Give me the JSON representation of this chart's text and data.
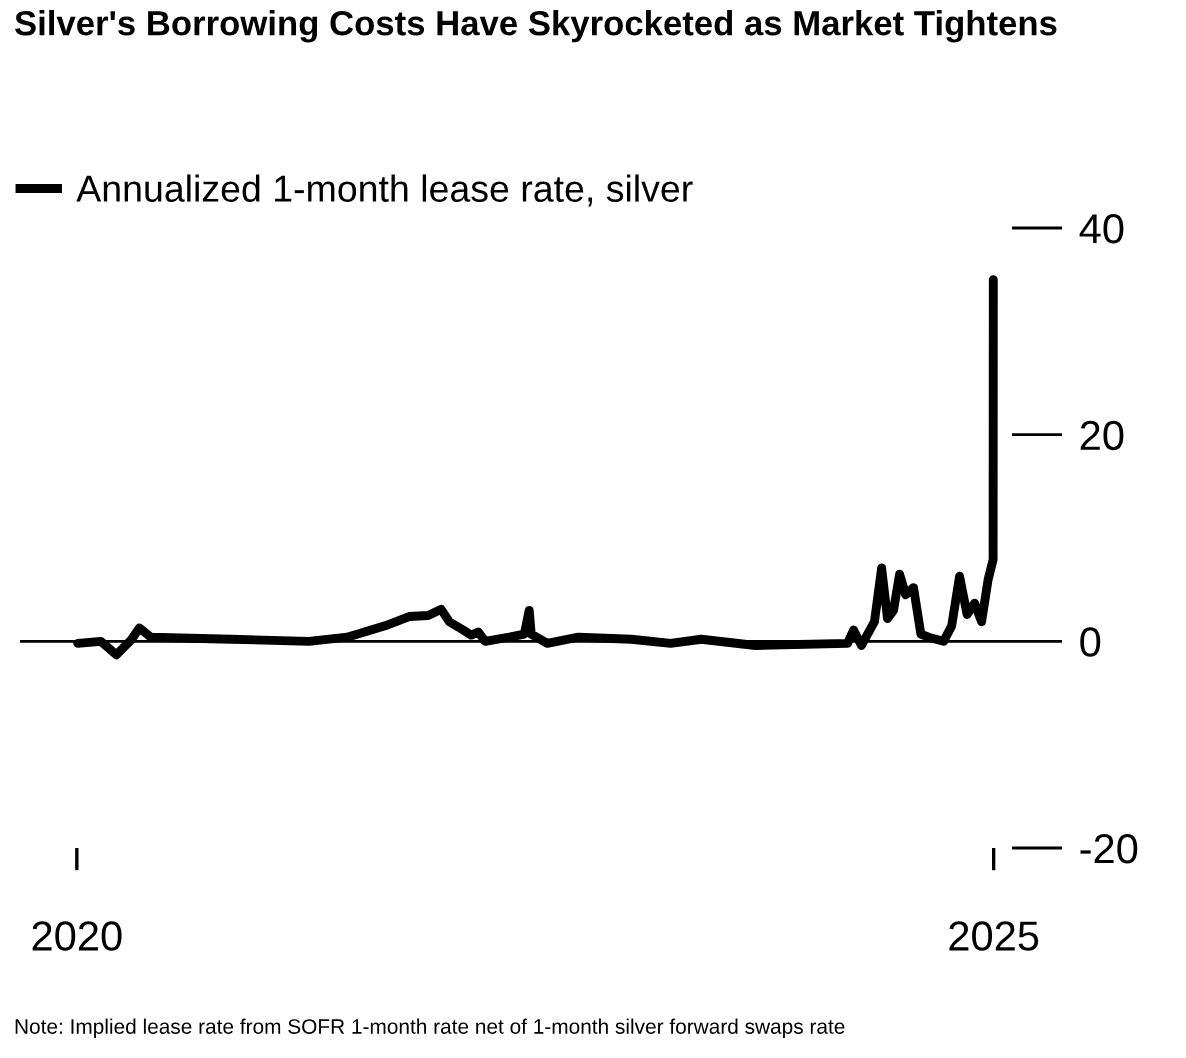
{
  "chart_data": {
    "type": "line",
    "title": "Silver's Borrowing Costs Have Skyrocketed as Market Tightens",
    "annotations": [
      "Note: Implied lease rate from SOFR 1-month rate net of 1-month silver forward swaps rate"
    ],
    "x": [
      2020.005,
      2020.131,
      2020.215,
      2020.299,
      2020.341,
      2020.404,
      2020.841,
      2021.266,
      2021.474,
      2021.681,
      2021.812,
      2021.916,
      2021.987,
      2022.031,
      2022.107,
      2022.151,
      2022.189,
      2022.227,
      2022.358,
      2022.44,
      2022.467,
      2022.478,
      2022.566,
      2022.735,
      2023.024,
      2023.238,
      2023.406,
      2023.701,
      2024.203,
      2024.236,
      2024.279,
      2024.35,
      2024.389,
      2024.421,
      2024.454,
      2024.487,
      2024.52,
      2024.563,
      2024.603,
      2024.645,
      2024.727,
      2024.771,
      2024.814,
      2024.855,
      2024.896,
      2024.934,
      2024.97,
      2024.997,
      2024.998
    ],
    "series": [
      {
        "name": "Annualized 1-month lease rate, silver",
        "color": "#000000",
        "values": [
          -0.2,
          0,
          -1.3,
          0.2,
          1.3,
          0.4,
          0.2,
          0,
          0.4,
          1.5,
          2.4,
          2.5,
          3.1,
          1.9,
          1.1,
          0.6,
          0.9,
          0,
          0.4,
          0.7,
          3.0,
          0.7,
          -0.2,
          0.4,
          0.2,
          -0.2,
          0.2,
          -0.4,
          -0.2,
          1.1,
          -0.4,
          1.9,
          7.1,
          2.2,
          3.0,
          6.5,
          4.5,
          5.2,
          0.7,
          0.4,
          0,
          1.5,
          6.3,
          2.6,
          3.7,
          1.9,
          6.0,
          7.9,
          35
        ]
      }
    ],
    "xlim": [
      2019.69,
      2025.1
    ],
    "xticks": [
      2020,
      2025
    ],
    "ylim": [
      -20,
      40
    ],
    "yticks": [
      -20,
      0,
      20,
      40
    ],
    "ref_lines": [
      {
        "axis": "y",
        "value": 0,
        "color": "#000000"
      }
    ],
    "legend": "top left",
    "grid": false,
    "line_style": "solid",
    "marker": "none"
  }
}
